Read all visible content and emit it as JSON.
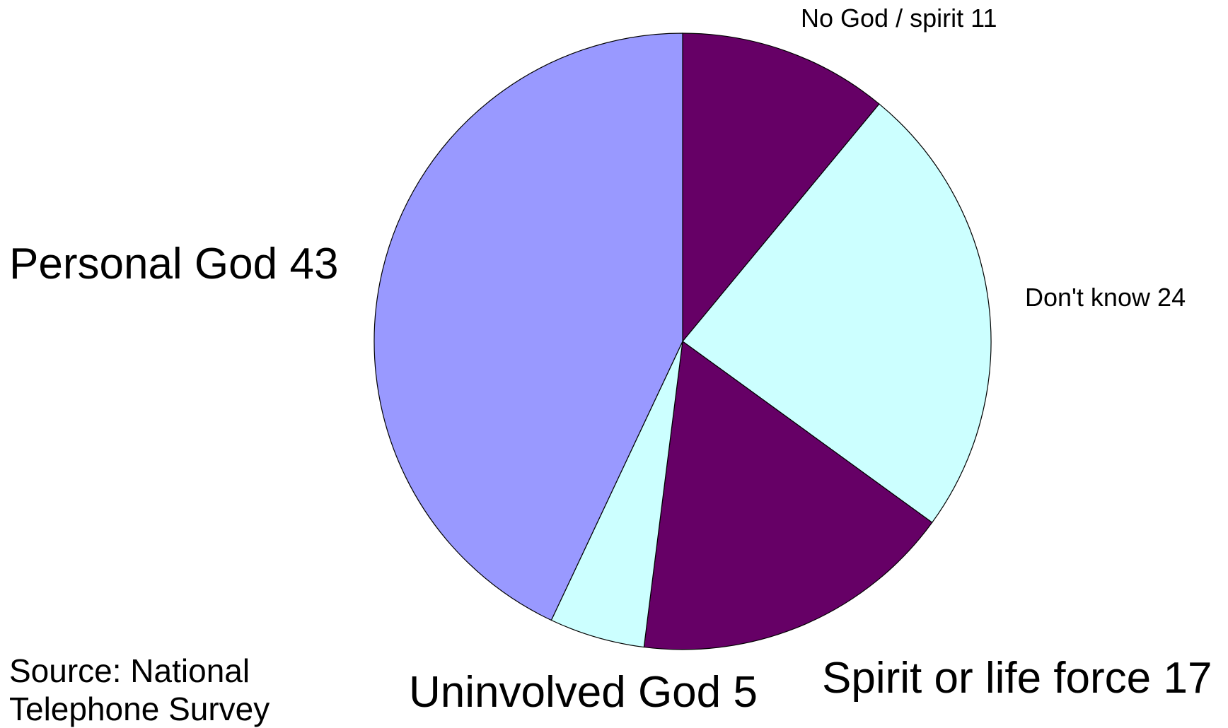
{
  "chart_data": {
    "type": "pie",
    "categories": [
      "No God / spirit",
      "Don't know",
      "Spirit or life force",
      "Uninvolved God",
      "Personal God"
    ],
    "values": [
      11,
      24,
      17,
      5,
      43
    ],
    "colors": [
      "#660066",
      "#ccffff",
      "#660066",
      "#ccffff",
      "#9999ff"
    ],
    "source": "Source: National Telephone Survey"
  }
}
